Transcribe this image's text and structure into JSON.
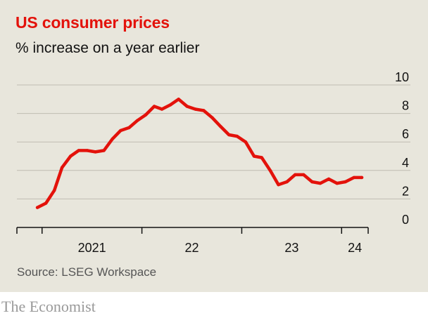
{
  "title": "US consumer prices",
  "subtitle": "% increase on a year earlier",
  "source": "Source: LSEG Workspace",
  "brand": "The Economist",
  "colors": {
    "line": "#e3120b",
    "background": "#e8e6dc",
    "grid": "#bfbcb2"
  },
  "chart_data": {
    "type": "line",
    "title": "US consumer prices",
    "subtitle": "% increase on a year earlier",
    "xlabel": "",
    "ylabel": "% increase on a year earlier",
    "ylim": [
      0,
      10
    ],
    "y_ticks": [
      0,
      2,
      4,
      6,
      8,
      10
    ],
    "x_ticks": [
      "2021",
      "22",
      "23",
      "24"
    ],
    "grid": true,
    "series": [
      {
        "x": [
          "2020-12",
          "2021-01",
          "2021-02",
          "2021-03",
          "2021-04",
          "2021-05",
          "2021-06",
          "2021-07",
          "2021-08",
          "2021-09",
          "2021-10",
          "2021-11",
          "2021-12",
          "2022-01",
          "2022-02",
          "2022-03",
          "2022-04",
          "2022-05",
          "2022-06",
          "2022-07",
          "2022-08",
          "2022-09",
          "2022-10",
          "2022-11",
          "2022-12",
          "2023-01",
          "2023-02",
          "2023-03",
          "2023-04",
          "2023-05",
          "2023-06",
          "2023-07",
          "2023-08",
          "2023-09",
          "2023-10",
          "2023-11",
          "2023-12",
          "2024-01",
          "2024-02",
          "2024-03"
        ],
        "values": [
          1.4,
          1.7,
          2.6,
          4.2,
          5.0,
          5.4,
          5.4,
          5.3,
          5.4,
          6.2,
          6.8,
          7.0,
          7.5,
          7.9,
          8.5,
          8.3,
          8.6,
          9.0,
          8.5,
          8.3,
          8.2,
          7.7,
          7.1,
          6.5,
          6.4,
          6.0,
          5.0,
          4.9,
          4.0,
          3.0,
          3.2,
          3.7,
          3.7,
          3.2,
          3.1,
          3.4,
          3.1,
          3.2,
          3.5,
          3.5
        ]
      }
    ]
  }
}
